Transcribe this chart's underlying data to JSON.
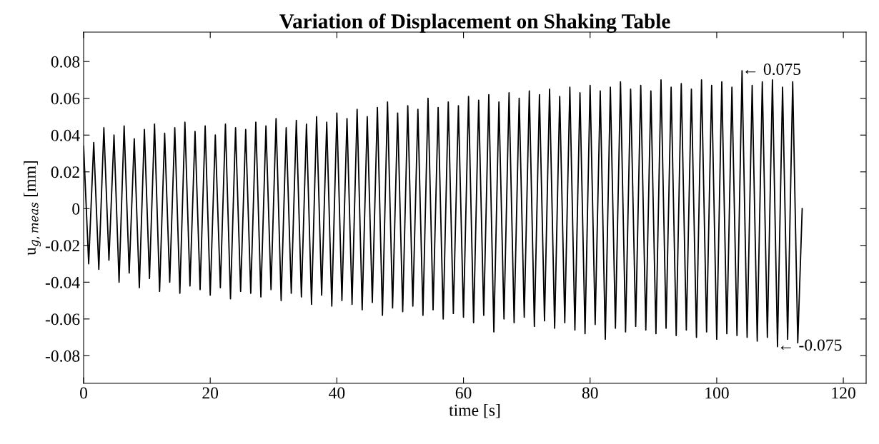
{
  "chart_data": {
    "type": "line",
    "title": "Variation of Displacement on Shaking Table",
    "xlabel": "time [s]",
    "ylabel": "u$_{g,meas}$ [mm]",
    "xlim": [
      0,
      123.6
    ],
    "xticks": [
      0,
      20,
      40,
      60,
      80,
      100,
      120
    ],
    "ylim": [
      -0.095,
      0.096
    ],
    "yticks": [
      -0.08,
      -0.06,
      -0.04,
      -0.02,
      0,
      0.02,
      0.04,
      0.06,
      0.08
    ],
    "grid": false,
    "marker": "none",
    "line_style": "solid",
    "annotations": [
      {
        "text": "← 0.075",
        "x": 104,
        "y": 0.075
      },
      {
        "text": "← -0.075",
        "x": 109.6,
        "y": -0.075
      }
    ],
    "series": [
      {
        "color": "#000000",
        "x": [
          0,
          0.8,
          1.6,
          2.4,
          3.2,
          4,
          4.8,
          5.6,
          6.4,
          7.2,
          8,
          8.8,
          9.6,
          10.4,
          11.2,
          12,
          12.8,
          13.6,
          14.4,
          15.2,
          16,
          16.8,
          17.6,
          18.4,
          19.2,
          20,
          20.8,
          21.6,
          22.4,
          23.2,
          24,
          24.8,
          25.6,
          26.4,
          27.2,
          28,
          28.8,
          29.6,
          30.4,
          31.2,
          32,
          32.8,
          33.6,
          34.4,
          35.2,
          36,
          36.8,
          37.6,
          38.4,
          39.2,
          40,
          40.8,
          41.6,
          42.4,
          43.2,
          44,
          44.8,
          45.6,
          46.4,
          47.2,
          48,
          48.8,
          49.6,
          50.4,
          51.2,
          52,
          52.8,
          53.6,
          54.4,
          55.2,
          56,
          56.8,
          57.6,
          58.4,
          59.2,
          60,
          60.8,
          61.6,
          62.4,
          63.2,
          64,
          64.8,
          65.6,
          66.4,
          67.2,
          68,
          68.8,
          69.6,
          70.4,
          71.2,
          72,
          72.8,
          73.6,
          74.4,
          75.2,
          76,
          76.8,
          77.6,
          78.4,
          79.2,
          80,
          80.8,
          81.6,
          82.4,
          83.2,
          84,
          84.8,
          85.6,
          86.4,
          87.2,
          88,
          88.8,
          89.6,
          90.4,
          91.2,
          92,
          92.8,
          93.6,
          94.4,
          95.2,
          96,
          96.8,
          97.6,
          98.4,
          99.2,
          100,
          100.8,
          101.6,
          102.4,
          103.2,
          104,
          104.8,
          105.6,
          106.4,
          107.2,
          108,
          108.8,
          109.6,
          110.4,
          111.2,
          112,
          112.8,
          113.5
        ],
        "values": [
          0.034,
          -0.03,
          0.036,
          -0.033,
          0.044,
          -0.028,
          0.04,
          -0.04,
          0.045,
          -0.035,
          0.038,
          -0.043,
          0.043,
          -0.038,
          0.046,
          -0.045,
          0.041,
          -0.04,
          0.044,
          -0.046,
          0.047,
          -0.042,
          0.042,
          -0.044,
          0.045,
          -0.047,
          0.04,
          -0.043,
          0.046,
          -0.049,
          0.044,
          -0.045,
          0.043,
          -0.046,
          0.047,
          -0.048,
          0.045,
          -0.044,
          0.049,
          -0.05,
          0.044,
          -0.046,
          0.048,
          -0.048,
          0.046,
          -0.052,
          0.05,
          -0.047,
          0.047,
          -0.053,
          0.052,
          -0.05,
          0.049,
          -0.052,
          0.054,
          -0.055,
          0.05,
          -0.051,
          0.055,
          -0.058,
          0.058,
          -0.054,
          0.052,
          -0.056,
          0.056,
          -0.053,
          0.054,
          -0.058,
          0.06,
          -0.055,
          0.055,
          -0.06,
          0.058,
          -0.057,
          0.056,
          -0.059,
          0.061,
          -0.062,
          0.059,
          -0.058,
          0.062,
          -0.067,
          0.058,
          -0.06,
          0.063,
          -0.062,
          0.06,
          -0.059,
          0.064,
          -0.064,
          0.062,
          -0.061,
          0.065,
          -0.065,
          0.061,
          -0.062,
          0.066,
          -0.066,
          0.063,
          -0.068,
          0.067,
          -0.063,
          0.064,
          -0.071,
          0.066,
          -0.065,
          0.069,
          -0.067,
          0.065,
          -0.064,
          0.067,
          -0.066,
          0.064,
          -0.068,
          0.07,
          -0.065,
          0.066,
          -0.069,
          0.068,
          -0.066,
          0.065,
          -0.07,
          0.07,
          -0.067,
          0.067,
          -0.071,
          0.069,
          -0.068,
          0.066,
          -0.069,
          0.075,
          -0.07,
          0.067,
          -0.072,
          0.069,
          -0.07,
          0.07,
          -0.075,
          0.066,
          -0.071,
          0.069,
          -0.073,
          0
        ]
      }
    ]
  }
}
